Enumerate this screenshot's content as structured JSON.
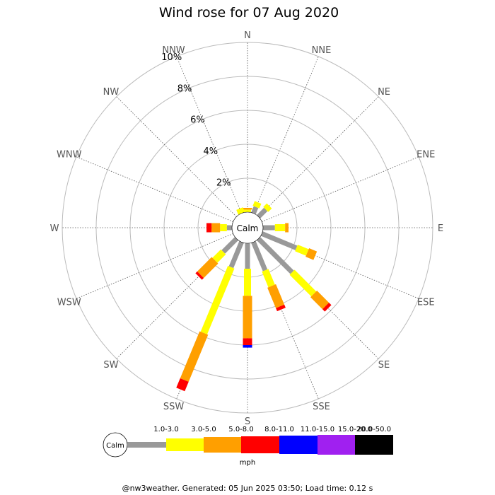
{
  "chart_data": {
    "type": "wind-rose",
    "title": "Wind rose for 07 Aug 2020",
    "directions": [
      "N",
      "NNE",
      "NE",
      "ENE",
      "E",
      "ESE",
      "SE",
      "SSE",
      "S",
      "SSW",
      "SW",
      "WSW",
      "W",
      "WNW",
      "NW",
      "NNW"
    ],
    "ring_labels": [
      "2%",
      "4%",
      "6%",
      "8%",
      "10%"
    ],
    "rlim": [
      0,
      10
    ],
    "calm_label": "Calm",
    "units": "mph",
    "speed_bins": [
      {
        "label": "",
        "color": "#999999"
      },
      {
        "label": "1.0-3.0",
        "color": "#ffff00"
      },
      {
        "label": "3.0-5.0",
        "color": "#ff9f00"
      },
      {
        "label": "5.0-8.0",
        "color": "#ff0000"
      },
      {
        "label": "8.0-11.0",
        "color": "#0000ff"
      },
      {
        "label": "11.0-15.0",
        "color": "#a020f0"
      },
      {
        "label": "15.0-20.0",
        "color": "#000000"
      },
      {
        "label": "20.0-50.0",
        "color": ""
      }
    ],
    "series": [
      {
        "direction": "N",
        "values": [
          0,
          0.15,
          0.1,
          0,
          0
        ]
      },
      {
        "direction": "NNE",
        "values": [
          0.4,
          0.3,
          0,
          0,
          0
        ]
      },
      {
        "direction": "NE",
        "values": [
          0.6,
          0.3,
          0,
          0,
          0
        ]
      },
      {
        "direction": "ENE",
        "values": [
          0,
          0,
          0,
          0,
          0
        ]
      },
      {
        "direction": "E",
        "values": [
          0.7,
          0.6,
          0.2,
          0,
          0
        ]
      },
      {
        "direction": "ESE",
        "values": [
          2.2,
          0.7,
          0.5,
          0,
          0
        ]
      },
      {
        "direction": "SE",
        "values": [
          2.8,
          1.8,
          1.0,
          0.2,
          0
        ]
      },
      {
        "direction": "SSE",
        "values": [
          1.8,
          1.0,
          1.3,
          0.2,
          0
        ]
      },
      {
        "direction": "S",
        "values": [
          1.5,
          1.6,
          2.5,
          0.4,
          0.15
        ]
      },
      {
        "direction": "SSW",
        "values": [
          1.6,
          4.2,
          3.0,
          0.6,
          0
        ]
      },
      {
        "direction": "SW",
        "values": [
          1.1,
          0.7,
          1.2,
          0.15,
          0
        ]
      },
      {
        "direction": "WSW",
        "values": [
          0,
          0,
          0,
          0,
          0
        ]
      },
      {
        "direction": "W",
        "values": [
          0.3,
          0.4,
          0.5,
          0.3,
          0
        ]
      },
      {
        "direction": "WNW",
        "values": [
          0,
          0,
          0,
          0,
          0
        ]
      },
      {
        "direction": "NW",
        "values": [
          0,
          0,
          0,
          0,
          0
        ]
      },
      {
        "direction": "NNW",
        "values": [
          0,
          0.3,
          0,
          0,
          0
        ]
      }
    ]
  },
  "footer": "@nw3weather. Generated: 05 Jun 2025 03:50; Load time: 0.12 s"
}
